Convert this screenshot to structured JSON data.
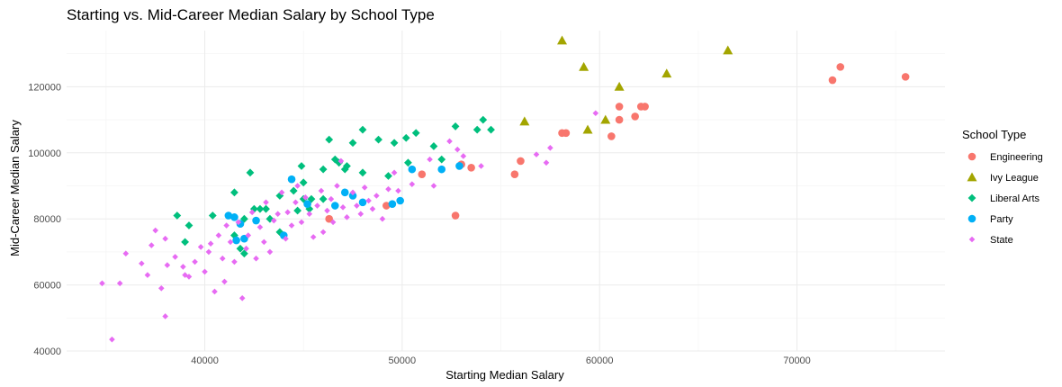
{
  "chart_data": {
    "type": "scatter",
    "title": "Starting vs. Mid-Career Median Salary by School Type",
    "xlabel": "Starting Median Salary",
    "ylabel": "Mid-Career Median Salary",
    "xlim": [
      33000,
      77500
    ],
    "ylim": [
      40000,
      137000
    ],
    "x_ticks": [
      40000,
      50000,
      60000,
      70000
    ],
    "y_ticks": [
      40000,
      60000,
      80000,
      100000,
      120000
    ],
    "grid": true,
    "legend_title": "School Type",
    "legend_position": "right",
    "series": [
      {
        "name": "Engineering",
        "color": "#F8766D",
        "shape": "circle",
        "points": [
          [
            72200,
            126000
          ],
          [
            71800,
            122000
          ],
          [
            75500,
            123000
          ],
          [
            62300,
            114000
          ],
          [
            62100,
            114000
          ],
          [
            61800,
            111000
          ],
          [
            61000,
            114000
          ],
          [
            61000,
            110000
          ],
          [
            60600,
            105000
          ],
          [
            58300,
            106000
          ],
          [
            58100,
            106000
          ],
          [
            56000,
            97500
          ],
          [
            55700,
            93500
          ],
          [
            53500,
            95500
          ],
          [
            53000,
            96500
          ],
          [
            52700,
            81000
          ],
          [
            51000,
            93500
          ],
          [
            49200,
            84000
          ],
          [
            46300,
            80000
          ]
        ]
      },
      {
        "name": "Ivy League",
        "color": "#A3A500",
        "shape": "triangle",
        "points": [
          [
            58100,
            134000
          ],
          [
            59200,
            126000
          ],
          [
            66500,
            131000
          ],
          [
            63400,
            124000
          ],
          [
            61000,
            120000
          ],
          [
            56200,
            109500
          ],
          [
            59400,
            107000
          ],
          [
            60300,
            110000
          ]
        ]
      },
      {
        "name": "Liberal Arts",
        "color": "#00BF7D",
        "shape": "diamond",
        "points": [
          [
            54100,
            110000
          ],
          [
            54500,
            107000
          ],
          [
            53800,
            107000
          ],
          [
            52700,
            108000
          ],
          [
            51600,
            102000
          ],
          [
            50700,
            106000
          ],
          [
            50200,
            104500
          ],
          [
            49600,
            103000
          ],
          [
            48800,
            104000
          ],
          [
            48000,
            107000
          ],
          [
            47500,
            103000
          ],
          [
            46300,
            104000
          ],
          [
            47200,
            96000
          ],
          [
            47100,
            95000
          ],
          [
            46800,
            97000
          ],
          [
            46600,
            98000
          ],
          [
            46000,
            95000
          ],
          [
            48000,
            94000
          ],
          [
            49300,
            93000
          ],
          [
            50300,
            97000
          ],
          [
            52000,
            98000
          ],
          [
            44900,
            96000
          ],
          [
            45000,
            91000
          ],
          [
            44500,
            88500
          ],
          [
            45400,
            86000
          ],
          [
            43800,
            87000
          ],
          [
            43100,
            83000
          ],
          [
            42500,
            83000
          ],
          [
            42800,
            83000
          ],
          [
            42000,
            80000
          ],
          [
            41500,
            88000
          ],
          [
            42300,
            94000
          ],
          [
            40400,
            81000
          ],
          [
            39200,
            78000
          ],
          [
            38600,
            81000
          ],
          [
            39000,
            73000
          ],
          [
            41500,
            75000
          ],
          [
            41800,
            71000
          ],
          [
            42000,
            69500
          ],
          [
            43300,
            80000
          ],
          [
            43800,
            76000
          ],
          [
            44700,
            82500
          ],
          [
            45000,
            86000
          ],
          [
            46000,
            86000
          ],
          [
            45300,
            83000
          ]
        ]
      },
      {
        "name": "Party",
        "color": "#00B0F6",
        "shape": "circle",
        "points": [
          [
            44400,
            92000
          ],
          [
            50500,
            95000
          ],
          [
            52000,
            95000
          ],
          [
            52900,
            96000
          ],
          [
            49900,
            85500
          ],
          [
            48000,
            85000
          ],
          [
            47100,
            88000
          ],
          [
            46600,
            84000
          ],
          [
            44000,
            75000
          ],
          [
            42000,
            74000
          ],
          [
            41500,
            80500
          ],
          [
            41600,
            73500
          ],
          [
            41200,
            81000
          ],
          [
            41800,
            78500
          ],
          [
            42600,
            79500
          ],
          [
            47500,
            87000
          ],
          [
            49500,
            84500
          ],
          [
            45200,
            84500
          ]
        ]
      },
      {
        "name": "State",
        "color": "#E76BF3",
        "shape": "diamond",
        "points": [
          [
            34800,
            60500
          ],
          [
            35300,
            43500
          ],
          [
            35700,
            60500
          ],
          [
            36000,
            69500
          ],
          [
            36800,
            66500
          ],
          [
            37100,
            63000
          ],
          [
            37300,
            72000
          ],
          [
            37500,
            76500
          ],
          [
            37800,
            59000
          ],
          [
            38000,
            50500
          ],
          [
            38000,
            74000
          ],
          [
            38100,
            66000
          ],
          [
            38500,
            68500
          ],
          [
            38900,
            65500
          ],
          [
            39000,
            63000
          ],
          [
            39200,
            62500
          ],
          [
            39500,
            67000
          ],
          [
            39800,
            71500
          ],
          [
            40000,
            64000
          ],
          [
            40200,
            70000
          ],
          [
            40300,
            72500
          ],
          [
            40500,
            58000
          ],
          [
            40700,
            75000
          ],
          [
            40900,
            68000
          ],
          [
            41000,
            61000
          ],
          [
            41100,
            78000
          ],
          [
            41300,
            73000
          ],
          [
            41500,
            67000
          ],
          [
            41700,
            79000
          ],
          [
            41900,
            56000
          ],
          [
            42100,
            71000
          ],
          [
            42200,
            75000
          ],
          [
            42400,
            82000
          ],
          [
            42600,
            68000
          ],
          [
            42800,
            77500
          ],
          [
            43000,
            73000
          ],
          [
            43100,
            85000
          ],
          [
            43300,
            70000
          ],
          [
            43500,
            79500
          ],
          [
            43700,
            81500
          ],
          [
            43900,
            88000
          ],
          [
            44100,
            74000
          ],
          [
            44200,
            82000
          ],
          [
            44400,
            78000
          ],
          [
            44600,
            85000
          ],
          [
            44700,
            90000
          ],
          [
            44900,
            79000
          ],
          [
            45100,
            86500
          ],
          [
            45300,
            81500
          ],
          [
            45500,
            74500
          ],
          [
            45700,
            84000
          ],
          [
            45900,
            88500
          ],
          [
            46000,
            76000
          ],
          [
            46200,
            82500
          ],
          [
            46400,
            86000
          ],
          [
            46500,
            79000
          ],
          [
            46700,
            90000
          ],
          [
            46900,
            97500
          ],
          [
            47000,
            83500
          ],
          [
            47200,
            80500
          ],
          [
            47500,
            88000
          ],
          [
            47700,
            84000
          ],
          [
            47900,
            81500
          ],
          [
            48100,
            89500
          ],
          [
            48300,
            85500
          ],
          [
            48500,
            83000
          ],
          [
            48700,
            87000
          ],
          [
            49000,
            80000
          ],
          [
            49300,
            89000
          ],
          [
            49600,
            94000
          ],
          [
            49800,
            88500
          ],
          [
            50500,
            90500
          ],
          [
            51400,
            98000
          ],
          [
            51600,
            90000
          ],
          [
            52400,
            103500
          ],
          [
            52800,
            101000
          ],
          [
            53100,
            99000
          ],
          [
            54000,
            96000
          ],
          [
            56800,
            99500
          ],
          [
            57300,
            97000
          ],
          [
            57500,
            101500
          ],
          [
            59800,
            112000
          ]
        ]
      }
    ]
  }
}
